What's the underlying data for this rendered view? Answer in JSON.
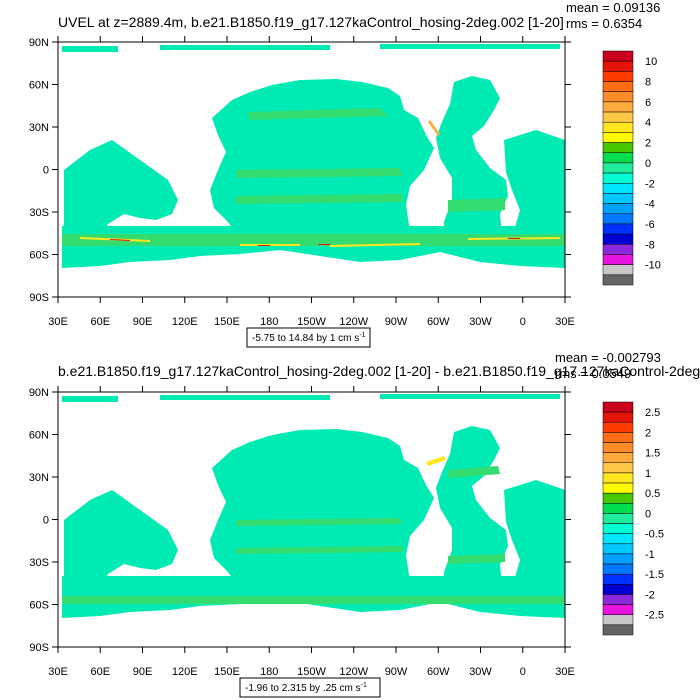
{
  "panels": [
    {
      "title": "UVEL at z=2889.4m, b.e21.B1850.f19_g17.127kaControl_hosing-2deg.002 [1-20]",
      "mean": "mean = 0.09136",
      "rms": "rms = 0.6354",
      "range_label": "-5.75 to 14.84 by 1 cm s",
      "range_sup": "-1",
      "lat_labels": [
        "90N",
        "60N",
        "30N",
        "0",
        "30S",
        "60S",
        "90S"
      ],
      "lon_labels": [
        "30E",
        "60E",
        "90E",
        "120E",
        "150E",
        "180",
        "150W",
        "120W",
        "90W",
        "60W",
        "30W",
        "0",
        "30E"
      ],
      "colorbar": {
        "labels": [
          "10",
          "8",
          "6",
          "4",
          "2",
          "0",
          "-2",
          "-4",
          "-6",
          "-8",
          "-10"
        ],
        "colors": [
          "#c8001e",
          "#e5140a",
          "#ff3c00",
          "#ff6e14",
          "#ff8c28",
          "#ffaa3c",
          "#ffc846",
          "#ffe61e",
          "#fffa00",
          "#46c800",
          "#00dc50",
          "#1eeb9b",
          "#00ffd2",
          "#00e6ff",
          "#00c8ff",
          "#00a0ff",
          "#0078ff",
          "#0032ff",
          "#0000d2",
          "#8c28dc",
          "#e614dc",
          "#c8c8c8",
          "#646464"
        ]
      }
    },
    {
      "title": "b.e21.B1850.f19_g17.127kaControl_hosing-2deg.002 [1-20] - b.e21.B1850.f19_g17.127kaControl-2deg.",
      "mean": "mean = -0.002793",
      "rms": "rms = 0.0549",
      "range_label": "-1.96 to 2.315 by .25 cm s",
      "range_sup": "-1",
      "lat_labels": [
        "90N",
        "60N",
        "30N",
        "0",
        "30S",
        "60S",
        "90S"
      ],
      "lon_labels": [
        "30E",
        "60E",
        "90E",
        "120E",
        "150E",
        "180",
        "150W",
        "120W",
        "90W",
        "60W",
        "30W",
        "0",
        "30E"
      ],
      "colorbar": {
        "labels": [
          "2.5",
          "2",
          "1.5",
          "1",
          "0.5",
          "0",
          "-0.5",
          "-1",
          "-1.5",
          "-2",
          "-2.5"
        ],
        "colors": [
          "#c8001e",
          "#e5140a",
          "#ff3c00",
          "#ff6e14",
          "#ff8c28",
          "#ffaa3c",
          "#ffc846",
          "#ffe61e",
          "#fffa00",
          "#46c800",
          "#00dc50",
          "#1eeb9b",
          "#00ffd2",
          "#00e6ff",
          "#00c8ff",
          "#00a0ff",
          "#0078ff",
          "#0032ff",
          "#0000d2",
          "#8c28dc",
          "#e614dc",
          "#c8c8c8",
          "#646464"
        ]
      }
    }
  ],
  "colors": {
    "ocean_main": "#00ebb4",
    "ocean_alt": "#32dc6e",
    "land": "#ffffff",
    "positive_accent": "#ffe61e",
    "strong_positive": "#e5140a"
  }
}
